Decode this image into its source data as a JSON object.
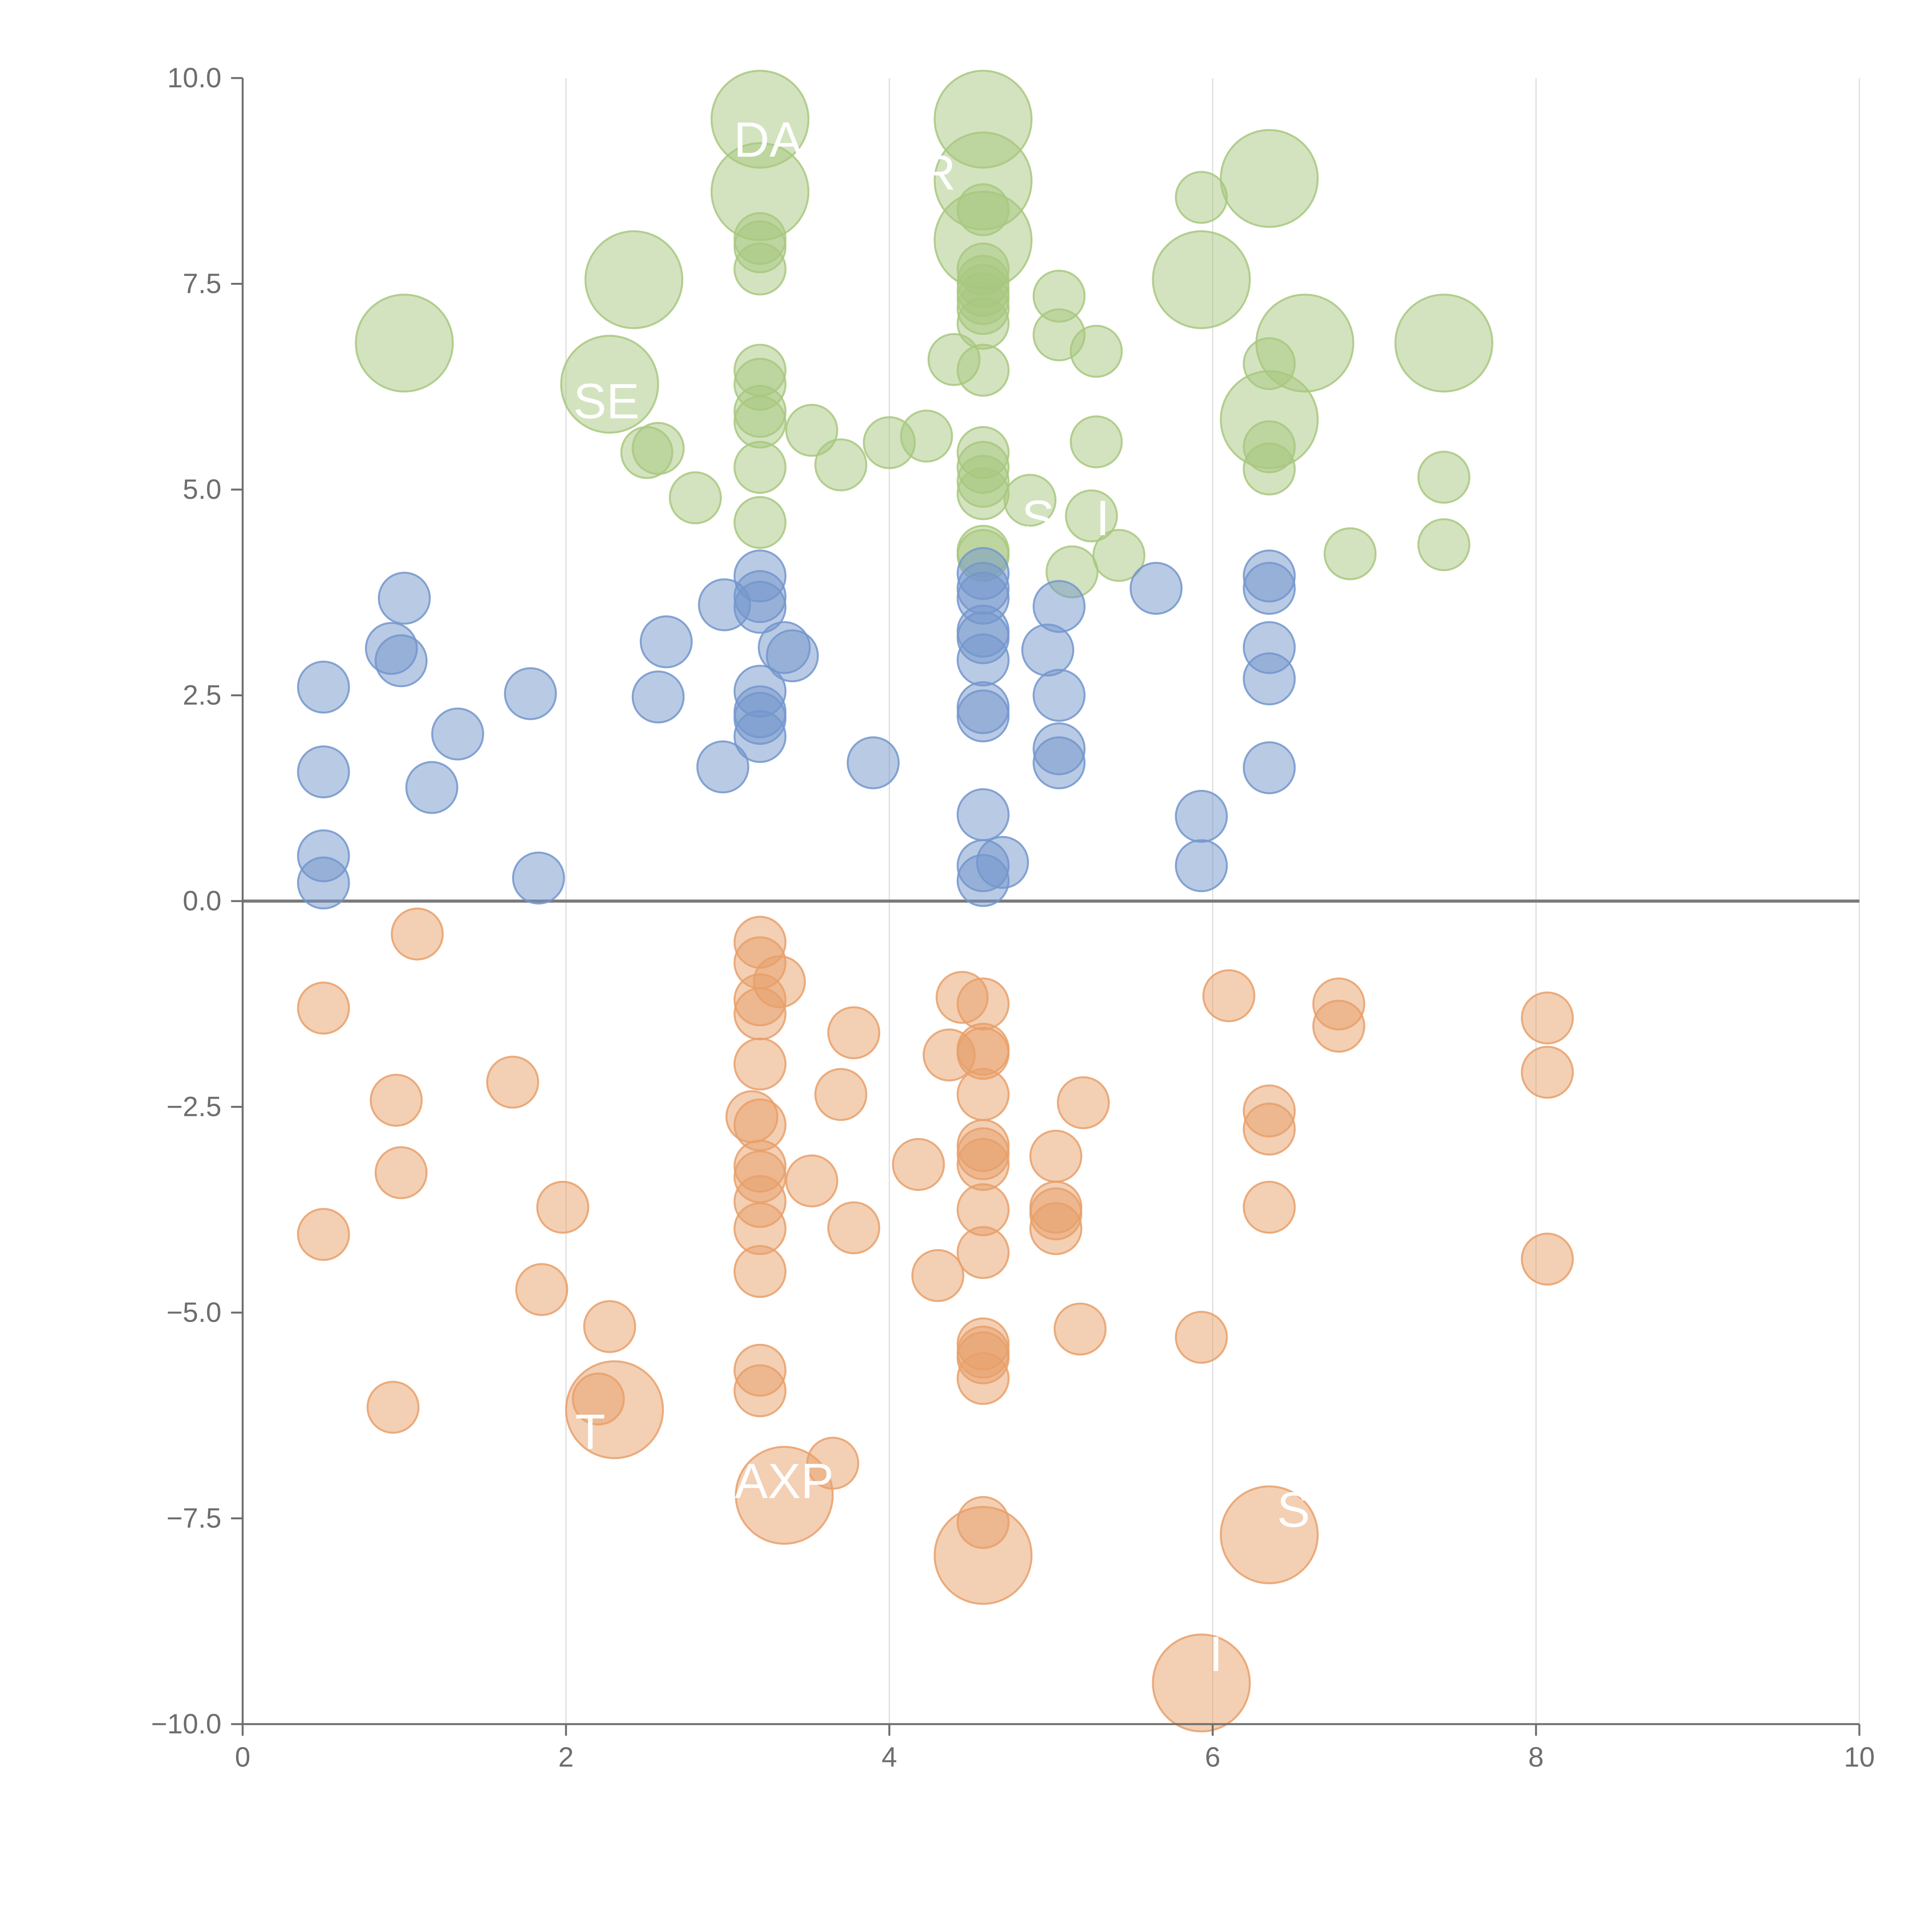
{
  "chart_data": {
    "type": "scatter",
    "title": "",
    "xlabel": "",
    "ylabel": "",
    "xlim": [
      0,
      10
    ],
    "ylim": [
      -10,
      10
    ],
    "x_ticks": [
      "0",
      "2",
      "4",
      "6",
      "8",
      "10"
    ],
    "y_ticks": [
      "10.0",
      "7.5",
      "5.0",
      "2.5",
      "0.0",
      "−2.5",
      "−5.0",
      "−7.5",
      "−10.0"
    ],
    "grid": "vertical",
    "colors": {
      "green": "#a8c87f",
      "blue": "#7396cc",
      "orange": "#e8a06a",
      "zero_line": "#7a7a7a"
    },
    "series": [
      {
        "name": "green",
        "color": "#a8c87f",
        "points": [
          {
            "x": 3.2,
            "y": 9.5,
            "r": 1.9
          },
          {
            "x": 4.58,
            "y": 9.5,
            "r": 1.9
          },
          {
            "x": 3.2,
            "y": 8.62,
            "r": 1.9
          },
          {
            "x": 4.58,
            "y": 8.75,
            "r": 1.9
          },
          {
            "x": 6.35,
            "y": 8.78,
            "r": 1.9
          },
          {
            "x": 4.58,
            "y": 8.03,
            "r": 1.9
          },
          {
            "x": 2.42,
            "y": 7.55,
            "r": 1.9
          },
          {
            "x": 5.93,
            "y": 7.55,
            "r": 1.9
          },
          {
            "x": 1.0,
            "y": 6.78,
            "r": 1.9
          },
          {
            "x": 6.57,
            "y": 6.78,
            "r": 1.9
          },
          {
            "x": 7.43,
            "y": 6.78,
            "r": 1.9
          },
          {
            "x": 2.27,
            "y": 6.28,
            "r": 1.9
          },
          {
            "x": 6.35,
            "y": 5.85,
            "r": 1.9
          },
          {
            "x": 5.93,
            "y": 8.55,
            "r": 1.0
          },
          {
            "x": 4.58,
            "y": 8.4,
            "r": 1.0
          },
          {
            "x": 3.2,
            "y": 8.05,
            "r": 1.0
          },
          {
            "x": 3.2,
            "y": 7.95,
            "r": 1.0
          },
          {
            "x": 3.2,
            "y": 7.68,
            "r": 1.0
          },
          {
            "x": 4.58,
            "y": 7.68,
            "r": 1.0
          },
          {
            "x": 4.58,
            "y": 7.53,
            "r": 1.0
          },
          {
            "x": 4.58,
            "y": 7.42,
            "r": 1.0
          },
          {
            "x": 4.58,
            "y": 7.32,
            "r": 1.0
          },
          {
            "x": 4.58,
            "y": 7.2,
            "r": 1.0
          },
          {
            "x": 4.58,
            "y": 7.02,
            "r": 1.0
          },
          {
            "x": 5.05,
            "y": 7.35,
            "r": 1.0
          },
          {
            "x": 5.05,
            "y": 6.88,
            "r": 1.0
          },
          {
            "x": 5.28,
            "y": 6.68,
            "r": 1.0
          },
          {
            "x": 4.4,
            "y": 6.58,
            "r": 1.0
          },
          {
            "x": 4.58,
            "y": 6.45,
            "r": 1.0
          },
          {
            "x": 6.35,
            "y": 6.53,
            "r": 1.0
          },
          {
            "x": 3.2,
            "y": 6.45,
            "r": 1.0
          },
          {
            "x": 3.2,
            "y": 6.28,
            "r": 1.0
          },
          {
            "x": 3.2,
            "y": 5.95,
            "r": 1.0
          },
          {
            "x": 3.2,
            "y": 5.82,
            "r": 1.0
          },
          {
            "x": 3.52,
            "y": 5.72,
            "r": 1.0
          },
          {
            "x": 4.0,
            "y": 5.57,
            "r": 1.0
          },
          {
            "x": 4.23,
            "y": 5.65,
            "r": 1.0
          },
          {
            "x": 5.28,
            "y": 5.58,
            "r": 1.0
          },
          {
            "x": 6.35,
            "y": 5.52,
            "r": 1.0
          },
          {
            "x": 4.58,
            "y": 5.45,
            "r": 1.0
          },
          {
            "x": 2.57,
            "y": 5.5,
            "r": 1.0
          },
          {
            "x": 2.5,
            "y": 5.45,
            "r": 1.0
          },
          {
            "x": 3.2,
            "y": 5.27,
            "r": 1.0
          },
          {
            "x": 3.7,
            "y": 5.3,
            "r": 1.0
          },
          {
            "x": 4.58,
            "y": 5.27,
            "r": 1.0
          },
          {
            "x": 6.35,
            "y": 5.25,
            "r": 1.0
          },
          {
            "x": 4.58,
            "y": 5.1,
            "r": 1.0
          },
          {
            "x": 7.43,
            "y": 5.15,
            "r": 1.0
          },
          {
            "x": 4.58,
            "y": 4.95,
            "r": 1.0
          },
          {
            "x": 2.8,
            "y": 4.9,
            "r": 1.0
          },
          {
            "x": 4.87,
            "y": 4.87,
            "r": 1.0
          },
          {
            "x": 5.25,
            "y": 4.68,
            "r": 1.0
          },
          {
            "x": 3.2,
            "y": 4.6,
            "r": 1.0
          },
          {
            "x": 7.43,
            "y": 4.33,
            "r": 1.0
          },
          {
            "x": 4.58,
            "y": 4.25,
            "r": 1.0
          },
          {
            "x": 4.58,
            "y": 4.2,
            "r": 1.0
          },
          {
            "x": 5.42,
            "y": 4.2,
            "r": 1.0
          },
          {
            "x": 6.85,
            "y": 4.22,
            "r": 1.0
          },
          {
            "x": 5.13,
            "y": 4.0,
            "r": 1.0
          }
        ]
      },
      {
        "name": "blue",
        "color": "#7396cc",
        "points": [
          {
            "x": 4.58,
            "y": 3.98,
            "r": 1.0
          },
          {
            "x": 3.2,
            "y": 3.95,
            "r": 1.0
          },
          {
            "x": 6.35,
            "y": 3.95,
            "r": 1.0
          },
          {
            "x": 4.58,
            "y": 3.8,
            "r": 1.0
          },
          {
            "x": 5.65,
            "y": 3.8,
            "r": 1.0
          },
          {
            "x": 6.35,
            "y": 3.8,
            "r": 1.0
          },
          {
            "x": 1.0,
            "y": 3.68,
            "r": 1.0
          },
          {
            "x": 3.2,
            "y": 3.7,
            "r": 1.0
          },
          {
            "x": 4.58,
            "y": 3.68,
            "r": 1.0
          },
          {
            "x": 2.98,
            "y": 3.6,
            "r": 1.0
          },
          {
            "x": 3.2,
            "y": 3.57,
            "r": 1.0
          },
          {
            "x": 5.05,
            "y": 3.58,
            "r": 1.0
          },
          {
            "x": 4.58,
            "y": 3.28,
            "r": 1.0
          },
          {
            "x": 4.58,
            "y": 3.2,
            "r": 1.0
          },
          {
            "x": 2.62,
            "y": 3.15,
            "r": 1.0
          },
          {
            "x": 0.92,
            "y": 3.07,
            "r": 1.0
          },
          {
            "x": 3.35,
            "y": 3.08,
            "r": 1.0
          },
          {
            "x": 3.4,
            "y": 2.98,
            "r": 1.0
          },
          {
            "x": 4.98,
            "y": 3.05,
            "r": 1.0
          },
          {
            "x": 6.35,
            "y": 3.08,
            "r": 1.0
          },
          {
            "x": 0.98,
            "y": 2.92,
            "r": 1.0
          },
          {
            "x": 4.58,
            "y": 2.93,
            "r": 1.0
          },
          {
            "x": 6.35,
            "y": 2.7,
            "r": 1.0
          },
          {
            "x": 0.5,
            "y": 2.6,
            "r": 1.0
          },
          {
            "x": 3.2,
            "y": 2.55,
            "r": 1.0
          },
          {
            "x": 1.78,
            "y": 2.52,
            "r": 1.0
          },
          {
            "x": 2.57,
            "y": 2.48,
            "r": 1.0
          },
          {
            "x": 5.05,
            "y": 2.5,
            "r": 1.0
          },
          {
            "x": 4.58,
            "y": 2.35,
            "r": 1.0
          },
          {
            "x": 3.2,
            "y": 2.3,
            "r": 1.0
          },
          {
            "x": 3.2,
            "y": 2.22,
            "r": 1.0
          },
          {
            "x": 4.58,
            "y": 2.25,
            "r": 1.0
          },
          {
            "x": 1.33,
            "y": 2.03,
            "r": 1.0
          },
          {
            "x": 3.2,
            "y": 2.0,
            "r": 1.0
          },
          {
            "x": 5.05,
            "y": 1.85,
            "r": 1.0
          },
          {
            "x": 3.9,
            "y": 1.68,
            "r": 1.0
          },
          {
            "x": 5.05,
            "y": 1.68,
            "r": 1.0
          },
          {
            "x": 2.97,
            "y": 1.63,
            "r": 1.0
          },
          {
            "x": 6.35,
            "y": 1.62,
            "r": 1.0
          },
          {
            "x": 0.5,
            "y": 1.57,
            "r": 1.0
          },
          {
            "x": 1.17,
            "y": 1.38,
            "r": 1.0
          },
          {
            "x": 4.58,
            "y": 1.05,
            "r": 1.0
          },
          {
            "x": 5.93,
            "y": 1.03,
            "r": 1.0
          },
          {
            "x": 0.5,
            "y": 0.55,
            "r": 1.0
          },
          {
            "x": 4.7,
            "y": 0.47,
            "r": 1.0
          },
          {
            "x": 4.58,
            "y": 0.43,
            "r": 1.0
          },
          {
            "x": 5.93,
            "y": 0.43,
            "r": 1.0
          },
          {
            "x": 1.83,
            "y": 0.28,
            "r": 1.0
          },
          {
            "x": 4.58,
            "y": 0.25,
            "r": 1.0
          },
          {
            "x": 0.5,
            "y": 0.22,
            "r": 1.0
          }
        ]
      },
      {
        "name": "orange",
        "color": "#e8a06a",
        "points": [
          {
            "x": 1.08,
            "y": -0.4,
            "r": 1.0
          },
          {
            "x": 3.2,
            "y": -0.5,
            "r": 1.0
          },
          {
            "x": 3.2,
            "y": -0.75,
            "r": 1.0
          },
          {
            "x": 3.32,
            "y": -0.98,
            "r": 1.0
          },
          {
            "x": 3.2,
            "y": -1.2,
            "r": 1.0
          },
          {
            "x": 4.45,
            "y": -1.17,
            "r": 1.0
          },
          {
            "x": 4.58,
            "y": -1.25,
            "r": 1.0
          },
          {
            "x": 6.1,
            "y": -1.15,
            "r": 1.0
          },
          {
            "x": 6.78,
            "y": -1.25,
            "r": 1.0
          },
          {
            "x": 0.5,
            "y": -1.3,
            "r": 1.0
          },
          {
            "x": 3.2,
            "y": -1.37,
            "r": 1.0
          },
          {
            "x": 8.07,
            "y": -1.42,
            "r": 1.0
          },
          {
            "x": 6.78,
            "y": -1.52,
            "r": 1.0
          },
          {
            "x": 3.78,
            "y": -1.6,
            "r": 1.0
          },
          {
            "x": 4.58,
            "y": -1.8,
            "r": 1.0
          },
          {
            "x": 4.37,
            "y": -1.87,
            "r": 1.0
          },
          {
            "x": 4.58,
            "y": -1.85,
            "r": 1.0
          },
          {
            "x": 3.2,
            "y": -1.98,
            "r": 1.0
          },
          {
            "x": 8.07,
            "y": -2.08,
            "r": 1.0
          },
          {
            "x": 1.67,
            "y": -2.2,
            "r": 1.0
          },
          {
            "x": 3.7,
            "y": -2.35,
            "r": 1.0
          },
          {
            "x": 4.58,
            "y": -2.35,
            "r": 1.0
          },
          {
            "x": 0.95,
            "y": -2.42,
            "r": 1.0
          },
          {
            "x": 5.2,
            "y": -2.45,
            "r": 1.0
          },
          {
            "x": 6.35,
            "y": -2.55,
            "r": 1.0
          },
          {
            "x": 3.15,
            "y": -2.62,
            "r": 1.0
          },
          {
            "x": 3.2,
            "y": -2.72,
            "r": 1.0
          },
          {
            "x": 6.35,
            "y": -2.77,
            "r": 1.0
          },
          {
            "x": 4.58,
            "y": -2.97,
            "r": 1.0
          },
          {
            "x": 4.58,
            "y": -3.07,
            "r": 1.0
          },
          {
            "x": 5.03,
            "y": -3.1,
            "r": 1.0
          },
          {
            "x": 4.18,
            "y": -3.2,
            "r": 1.0
          },
          {
            "x": 3.2,
            "y": -3.22,
            "r": 1.0
          },
          {
            "x": 4.58,
            "y": -3.2,
            "r": 1.0
          },
          {
            "x": 0.98,
            "y": -3.3,
            "r": 1.0
          },
          {
            "x": 3.2,
            "y": -3.35,
            "r": 1.0
          },
          {
            "x": 3.52,
            "y": -3.4,
            "r": 1.0
          },
          {
            "x": 3.2,
            "y": -3.65,
            "r": 1.0
          },
          {
            "x": 1.98,
            "y": -3.72,
            "r": 1.0
          },
          {
            "x": 4.58,
            "y": -3.75,
            "r": 1.0
          },
          {
            "x": 5.03,
            "y": -3.72,
            "r": 1.0
          },
          {
            "x": 5.03,
            "y": -3.8,
            "r": 1.0
          },
          {
            "x": 6.35,
            "y": -3.72,
            "r": 1.0
          },
          {
            "x": 3.2,
            "y": -3.98,
            "r": 1.0
          },
          {
            "x": 3.78,
            "y": -3.97,
            "r": 1.0
          },
          {
            "x": 5.03,
            "y": -3.98,
            "r": 1.0
          },
          {
            "x": 0.5,
            "y": -4.05,
            "r": 1.0
          },
          {
            "x": 4.58,
            "y": -4.27,
            "r": 1.0
          },
          {
            "x": 8.07,
            "y": -4.35,
            "r": 1.0
          },
          {
            "x": 3.2,
            "y": -4.5,
            "r": 1.0
          },
          {
            "x": 4.3,
            "y": -4.55,
            "r": 1.0
          },
          {
            "x": 1.85,
            "y": -4.72,
            "r": 1.0
          },
          {
            "x": 2.27,
            "y": -5.17,
            "r": 1.0
          },
          {
            "x": 5.18,
            "y": -5.2,
            "r": 1.0
          },
          {
            "x": 5.93,
            "y": -5.3,
            "r": 1.0
          },
          {
            "x": 4.58,
            "y": -5.38,
            "r": 1.0
          },
          {
            "x": 4.58,
            "y": -5.48,
            "r": 1.0
          },
          {
            "x": 4.58,
            "y": -5.55,
            "r": 1.0
          },
          {
            "x": 3.2,
            "y": -5.7,
            "r": 1.0
          },
          {
            "x": 4.58,
            "y": -5.8,
            "r": 1.0
          },
          {
            "x": 3.2,
            "y": -5.95,
            "r": 1.0
          },
          {
            "x": 2.2,
            "y": -6.05,
            "r": 1.0
          },
          {
            "x": 0.93,
            "y": -6.15,
            "r": 1.0
          },
          {
            "x": 3.65,
            "y": -6.83,
            "r": 1.0
          },
          {
            "x": 4.58,
            "y": -7.55,
            "r": 1.0
          },
          {
            "x": 2.3,
            "y": -6.18,
            "r": 1.9
          },
          {
            "x": 3.35,
            "y": -7.22,
            "r": 1.9
          },
          {
            "x": 6.35,
            "y": -7.7,
            "r": 1.9
          },
          {
            "x": 4.58,
            "y": -7.95,
            "r": 1.9
          },
          {
            "x": 5.93,
            "y": -9.5,
            "r": 1.9
          }
        ]
      }
    ],
    "annotations": [
      {
        "text": "DA",
        "x": 3.25,
        "y": 9.25
      },
      {
        "text": "R",
        "x": 4.3,
        "y": 8.85
      },
      {
        "text": "SE",
        "x": 2.25,
        "y": 6.07
      },
      {
        "text": "S",
        "x": 4.92,
        "y": 4.65
      },
      {
        "text": "I",
        "x": 5.32,
        "y": 4.65
      },
      {
        "text": "T",
        "x": 2.15,
        "y": -6.45
      },
      {
        "text": "AXP",
        "x": 3.35,
        "y": -7.05
      },
      {
        "text": "S",
        "x": 6.5,
        "y": -7.4
      },
      {
        "text": "I",
        "x": 6.02,
        "y": -9.15
      }
    ]
  }
}
